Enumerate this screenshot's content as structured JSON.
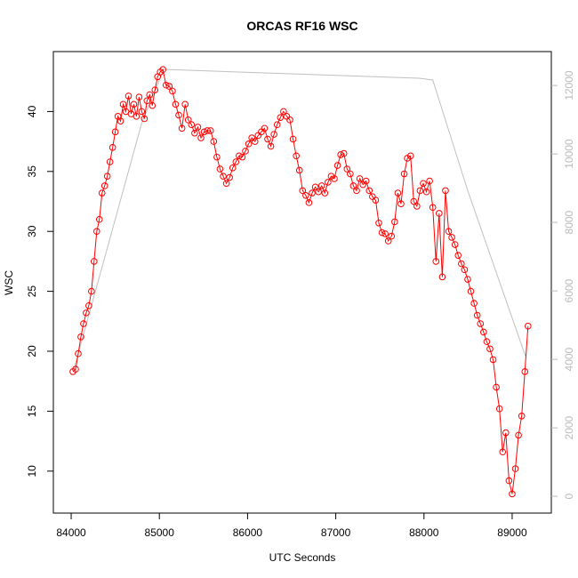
{
  "chart_data": {
    "type": "line",
    "title": "ORCAS RF16 WSC",
    "xlabel": "UTC Seconds",
    "ylabel": "WSC",
    "xlim": [
      83798,
      89444
    ],
    "xticks": [
      84000,
      85000,
      86000,
      87000,
      88000,
      89000
    ],
    "ylim": [
      6.5,
      45
    ],
    "yticks": [
      10,
      15,
      20,
      25,
      30,
      35,
      40
    ],
    "y2lim": [
      -490,
      12990
    ],
    "y2ticks": [
      0,
      2000,
      4000,
      6000,
      8000,
      10000,
      12000
    ],
    "series": [
      {
        "color": "#ff0000",
        "marker": "circle",
        "x": [
          84020,
          84050,
          84080,
          84110,
          84140,
          84170,
          84200,
          84230,
          84260,
          84290,
          84320,
          84350,
          84380,
          84410,
          84440,
          84470,
          84500,
          84530,
          84560,
          84590,
          84620,
          84650,
          84680,
          84710,
          84740,
          84770,
          84800,
          84830,
          84860,
          84890,
          84920,
          84950,
          84980,
          85010,
          85040,
          85076,
          85112,
          85148,
          85184,
          85220,
          85256,
          85292,
          85328,
          85364,
          85400,
          85436,
          85472,
          85508,
          85544,
          85580,
          85616,
          85652,
          85688,
          85724,
          85760,
          85796,
          85832,
          85868,
          85904,
          85940,
          85976,
          86012,
          86048,
          86084,
          86120,
          86156,
          86192,
          86228,
          86264,
          86300,
          86336,
          86372,
          86408,
          86444,
          86480,
          86516,
          86552,
          86588,
          86624,
          86660,
          86696,
          86732,
          86768,
          86804,
          86840,
          86876,
          86912,
          86948,
          86984,
          87020,
          87056,
          87092,
          87128,
          87164,
          87200,
          87236,
          87272,
          87308,
          87344,
          87380,
          87416,
          87452,
          87488,
          87524,
          87560,
          87596,
          87632,
          87668,
          87704,
          87740,
          87776,
          87812,
          87848,
          87884,
          87920,
          87956,
          87992,
          88028,
          88064,
          88100,
          88136,
          88172,
          88208,
          88244,
          88280,
          88316,
          88352,
          88388,
          88424,
          88460,
          88496,
          88532,
          88568,
          88604,
          88640,
          88676,
          88712,
          88748,
          88784,
          88820,
          88856,
          88892,
          88928,
          88964,
          89000,
          89036,
          89072,
          89108,
          89144,
          89180
        ],
        "values": [
          18.3,
          18.5,
          19.8,
          21.2,
          22.3,
          23.2,
          23.8,
          25.0,
          27.5,
          30.0,
          31.0,
          33.2,
          33.8,
          34.6,
          35.8,
          37.0,
          38.3,
          39.6,
          39.2,
          40.6,
          40.0,
          41.3,
          39.8,
          40.6,
          39.6,
          41.2,
          40.0,
          39.4,
          40.9,
          41.4,
          40.5,
          41.8,
          42.9,
          43.3,
          43.5,
          42.2,
          42.1,
          41.7,
          40.6,
          39.7,
          38.6,
          40.6,
          39.3,
          38.9,
          38.2,
          38.7,
          37.8,
          38.3,
          38.4,
          38.4,
          37.5,
          36.2,
          35.2,
          34.6,
          34.0,
          34.5,
          35.3,
          35.8,
          36.3,
          36.2,
          36.7,
          37.3,
          37.8,
          37.5,
          38.0,
          38.3,
          38.6,
          37.7,
          37.1,
          38.1,
          38.9,
          39.5,
          40.0,
          39.6,
          39.3,
          37.7,
          36.3,
          35.1,
          33.4,
          33.0,
          32.4,
          33.2,
          33.7,
          33.3,
          33.8,
          33.2,
          34.1,
          34.6,
          34.4,
          35.5,
          36.4,
          36.5,
          35.2,
          34.8,
          33.8,
          33.4,
          34.4,
          33.9,
          34.2,
          33.4,
          32.9,
          32.6,
          30.7,
          29.9,
          29.8,
          29.2,
          29.6,
          30.8,
          33.2,
          32.3,
          34.8,
          36.1,
          36.3,
          32.5,
          32.1,
          33.4,
          34.0,
          33.3,
          34.2,
          32.0,
          27.5,
          31.5,
          26.2,
          33.4,
          30.0,
          29.5,
          28.9,
          28.0,
          27.3,
          26.8,
          26.0,
          25.0,
          24.0,
          23.0,
          22.3,
          21.6,
          20.8,
          20.2,
          19.3,
          17.0,
          15.2,
          11.6,
          13.2,
          9.2,
          8.1,
          10.2,
          13.0,
          14.6,
          18.3,
          22.1
        ]
      },
      {
        "color": "#c0c0c0",
        "axis": "y2",
        "x": [
          84030,
          84800,
          85050,
          87950,
          88100,
          88500,
          89150
        ],
        "values": [
          3700,
          10900,
          12470,
          12210,
          12160,
          8900,
          4100
        ]
      }
    ]
  }
}
